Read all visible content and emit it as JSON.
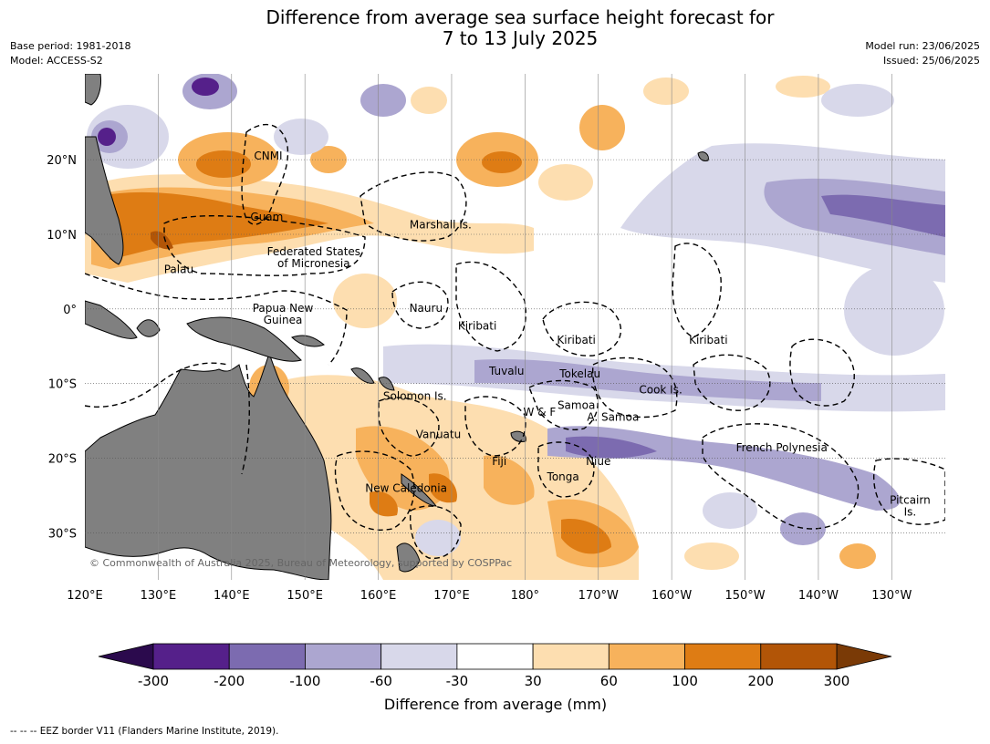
{
  "title_line1": "Difference from average sea surface height forecast for",
  "title_line2": "7 to 13 July 2025",
  "meta_left": [
    "Base period: 1981-2018",
    "Model: ACCESS-S2"
  ],
  "meta_right": [
    "Model run: 23/06/2025",
    "Issued: 25/06/2025"
  ],
  "copyright": "© Commonwealth of Australia 2025, Bureau of Meteorology, supported by COSPPac",
  "footer": "--  --  -- EEZ border V11 (Flanders Marine Institute, 2019).",
  "lon_ticks": [
    {
      "lon": 120,
      "label": "120°E"
    },
    {
      "lon": 130,
      "label": "130°E"
    },
    {
      "lon": 140,
      "label": "140°E"
    },
    {
      "lon": 150,
      "label": "150°E"
    },
    {
      "lon": 160,
      "label": "160°E"
    },
    {
      "lon": 170,
      "label": "170°E"
    },
    {
      "lon": 180,
      "label": "180°"
    },
    {
      "lon": 190,
      "label": "170°W"
    },
    {
      "lon": 200,
      "label": "160°W"
    },
    {
      "lon": 210,
      "label": "150°W"
    },
    {
      "lon": 220,
      "label": "140°W"
    },
    {
      "lon": 230,
      "label": "130°W"
    }
  ],
  "lat_ticks": [
    {
      "lat": 20,
      "label": "20°N"
    },
    {
      "lat": 10,
      "label": "10°N"
    },
    {
      "lat": 0,
      "label": "0°"
    },
    {
      "lat": -10,
      "label": "10°S"
    },
    {
      "lat": -20,
      "label": "20°S"
    },
    {
      "lat": -30,
      "label": "30°S"
    }
  ],
  "place_labels": [
    {
      "name": "CNMI",
      "lon": 145,
      "lat": 20.5
    },
    {
      "name": "Guam",
      "lon": 144.8,
      "lat": 12.3
    },
    {
      "name": "Marshall Is.",
      "lon": 168.5,
      "lat": 11.3
    },
    {
      "name": "Federated States",
      "lon": 151.2,
      "lat": 7.7
    },
    {
      "name": "of Micronesia",
      "lon": 151.2,
      "lat": 6.1
    },
    {
      "name": "Palau",
      "lon": 132.8,
      "lat": 5.3
    },
    {
      "name": "Papua New",
      "lon": 147,
      "lat": 0.1
    },
    {
      "name": "Guinea",
      "lon": 147,
      "lat": -1.5
    },
    {
      "name": "Nauru",
      "lon": 166.5,
      "lat": 0.1
    },
    {
      "name": "Kiribati",
      "lon": 173.5,
      "lat": -2.3
    },
    {
      "name": "Kiribati",
      "lon": 187,
      "lat": -4.2
    },
    {
      "name": "Kiribati",
      "lon": 205,
      "lat": -4.2
    },
    {
      "name": "Tuvalu",
      "lon": 177.5,
      "lat": -8.3
    },
    {
      "name": "Tokelau",
      "lon": 187.5,
      "lat": -8.7
    },
    {
      "name": "Solomon Is.",
      "lon": 165,
      "lat": -11.7
    },
    {
      "name": "Cook Is.",
      "lon": 198.5,
      "lat": -10.8
    },
    {
      "name": "Samoa",
      "lon": 187,
      "lat": -12.9
    },
    {
      "name": "W & F",
      "lon": 182,
      "lat": -13.8
    },
    {
      "name": "A. Samoa",
      "lon": 192,
      "lat": -14.5
    },
    {
      "name": "Vanuatu",
      "lon": 168.2,
      "lat": -16.8
    },
    {
      "name": "French Polynesia",
      "lon": 215,
      "lat": -18.6
    },
    {
      "name": "Fiji",
      "lon": 176.5,
      "lat": -20.4
    },
    {
      "name": "Niue",
      "lon": 190,
      "lat": -20.4
    },
    {
      "name": "Tonga",
      "lon": 185.2,
      "lat": -22.5
    },
    {
      "name": "New Caledonia",
      "lon": 163.8,
      "lat": -24
    },
    {
      "name": "Pitcairn",
      "lon": 232.5,
      "lat": -25.6
    },
    {
      "name": "Is.",
      "lon": 232.5,
      "lat": -27.2
    }
  ],
  "colorbar": {
    "title": "Difference from average (mm)",
    "levels": [
      -300,
      -200,
      -100,
      -60,
      -30,
      30,
      60,
      100,
      200,
      300
    ],
    "tick_labels": [
      "-300",
      "-200",
      "-100",
      "-60",
      "-30",
      "30",
      "60",
      "100",
      "200",
      "300"
    ],
    "colors": [
      "#55208a",
      "#7c6bb0",
      "#aca6d0",
      "#d8d8ea",
      "#ffffff",
      "#fddeb0",
      "#f7b25c",
      "#de7c14",
      "#b25507"
    ],
    "under_color": "#2b0a4d",
    "over_color": "#7a3a06"
  },
  "land_color": "#808080",
  "ocean_color": "#ffffff"
}
